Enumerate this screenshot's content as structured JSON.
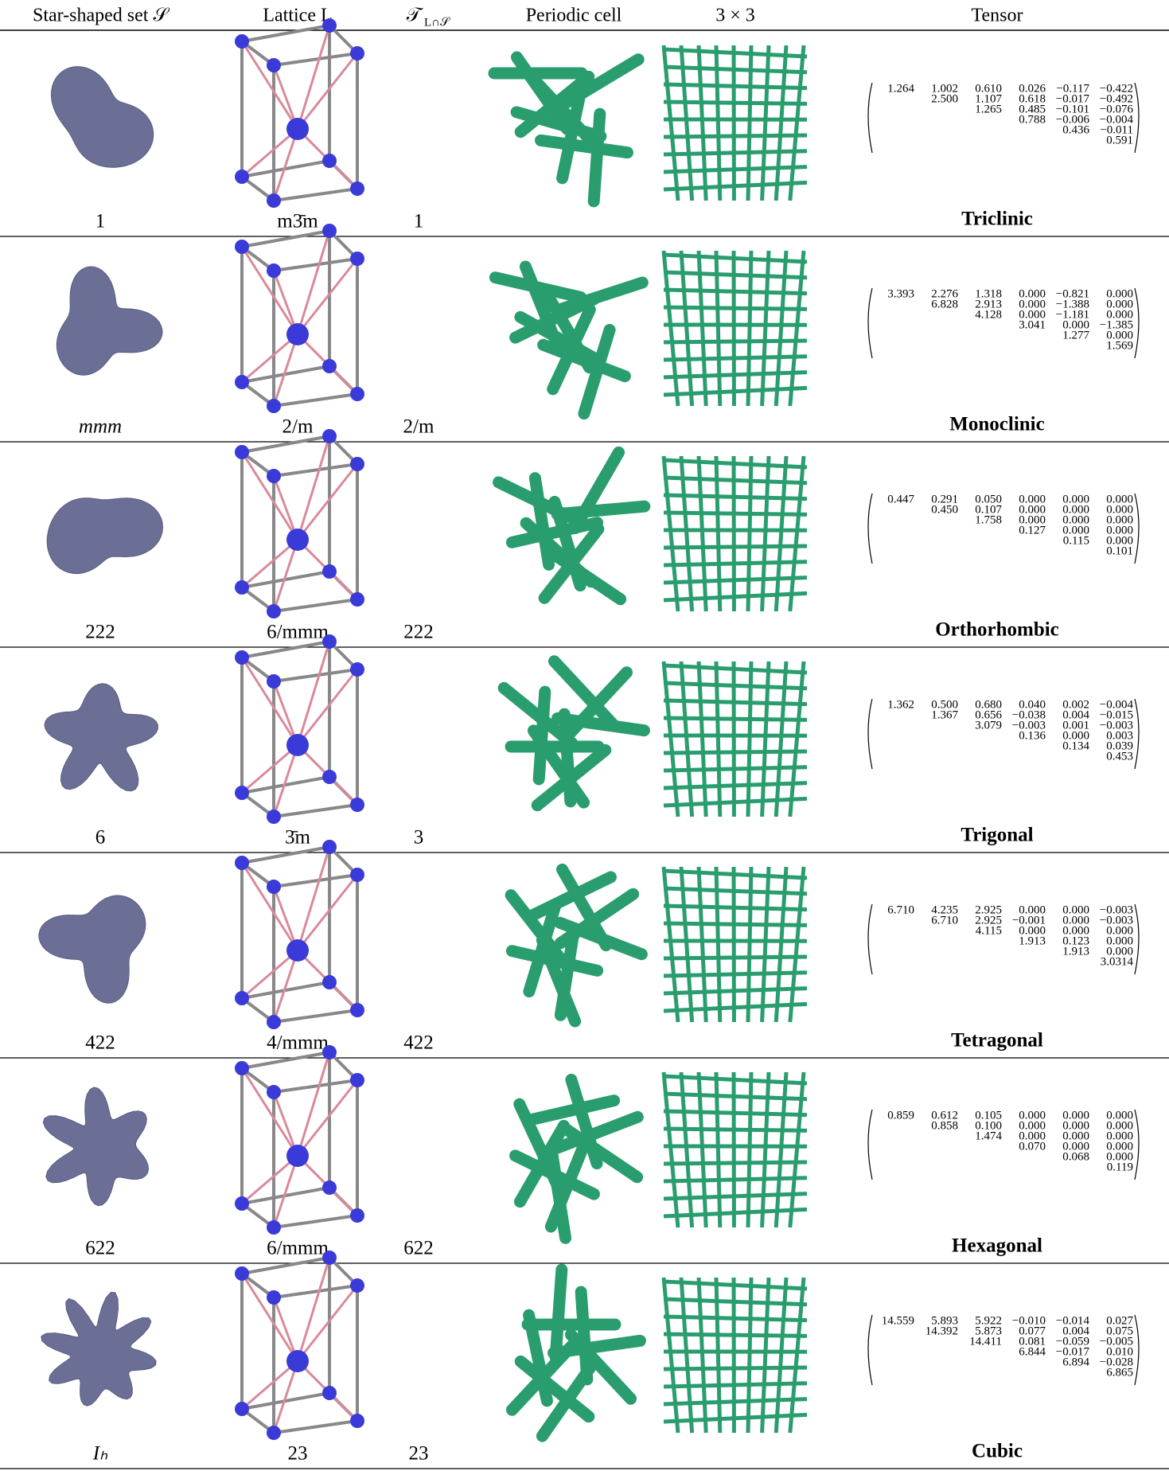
{
  "header": {
    "star_set": "Star-shaped set 𝒮",
    "lattice": "Lattice L",
    "t_symbol": "𝒯",
    "t_subscript": "L∩𝒮",
    "periodic_cell": "Periodic cell",
    "tiling": "3 × 3",
    "tensor": "Tensor"
  },
  "rows": [
    {
      "s": "1",
      "l": "m3̄m",
      "t": "1",
      "class": "Triclinic",
      "tensor": [
        [
          "1.264",
          "1.002",
          "0.610",
          "0.026",
          "−0.117",
          "−0.422"
        ],
        [
          "2.500",
          "1.107",
          "0.618",
          "−0.017",
          "−0.492"
        ],
        [
          "1.265",
          "0.485",
          "−0.101",
          "−0.076"
        ],
        [
          "0.788",
          "−0.006",
          "−0.004"
        ],
        [
          "0.436",
          "−0.011"
        ],
        [
          "0.591"
        ]
      ]
    },
    {
      "s": "mmm",
      "l": "2/m",
      "t": "2/m",
      "class": "Monoclinic",
      "tensor": [
        [
          "3.393",
          "2.276",
          "1.318",
          "0.000",
          "−0.821",
          "0.000"
        ],
        [
          "6.828",
          "2.913",
          "0.000",
          "−1.388",
          "0.000"
        ],
        [
          "4.128",
          "0.000",
          "−1.181",
          "0.000"
        ],
        [
          "3.041",
          "0.000",
          "−1.385"
        ],
        [
          "1.277",
          "0.000"
        ],
        [
          "1.569"
        ]
      ]
    },
    {
      "s": "222",
      "l": "6/mmm",
      "t": "222",
      "class": "Orthorhombic",
      "tensor": [
        [
          "0.447",
          "0.291",
          "0.050",
          "0.000",
          "0.000",
          "0.000"
        ],
        [
          "0.450",
          "0.107",
          "0.000",
          "0.000",
          "0.000"
        ],
        [
          "1.758",
          "0.000",
          "0.000",
          "0.000"
        ],
        [
          "0.127",
          "0.000",
          "0.000"
        ],
        [
          "0.115",
          "0.000"
        ],
        [
          "0.101"
        ]
      ]
    },
    {
      "s": "6",
      "l": "3̄m",
      "t": "3",
      "class": "Trigonal",
      "tensor": [
        [
          "1.362",
          "0.500",
          "0.680",
          "0.040",
          "0.002",
          "−0.004"
        ],
        [
          "1.367",
          "0.656",
          "−0.038",
          "0.004",
          "−0.015"
        ],
        [
          "3.079",
          "−0.003",
          "0.001",
          "−0.003"
        ],
        [
          "0.136",
          "0.000",
          "0.003"
        ],
        [
          "0.134",
          "0.039"
        ],
        [
          "0.453"
        ]
      ]
    },
    {
      "s": "422",
      "l": "4/mmm",
      "t": "422",
      "class": "Tetragonal",
      "tensor": [
        [
          "6.710",
          "4.235",
          "2.925",
          "0.000",
          "0.000",
          "−0.003"
        ],
        [
          "6.710",
          "2.925",
          "−0.001",
          "0.000",
          "−0.003"
        ],
        [
          "4.115",
          "0.000",
          "0.000",
          "0.000"
        ],
        [
          "1.913",
          "0.123",
          "0.000"
        ],
        [
          "1.913",
          "0.000"
        ],
        [
          "3.0314"
        ]
      ]
    },
    {
      "s": "622",
      "l": "6/mmm",
      "t": "622",
      "class": "Hexagonal",
      "tensor": [
        [
          "0.859",
          "0.612",
          "0.105",
          "0.000",
          "0.000",
          "0.000"
        ],
        [
          "0.858",
          "0.100",
          "0.000",
          "0.000",
          "0.000"
        ],
        [
          "1.474",
          "0.000",
          "0.000",
          "0.000"
        ],
        [
          "0.070",
          "0.000",
          "0.000"
        ],
        [
          "0.068",
          "0.000"
        ],
        [
          "0.119"
        ]
      ]
    },
    {
      "s": "Iₕ",
      "l": "23",
      "t": "23",
      "class": "Cubic",
      "tensor": [
        [
          "14.559",
          "5.893",
          "5.922",
          "−0.010",
          "−0.014",
          "0.027"
        ],
        [
          "14.392",
          "5.873",
          "0.077",
          "0.004",
          "0.075"
        ],
        [
          "14.411",
          "0.081",
          "−0.059",
          "−0.005"
        ],
        [
          "6.844",
          "−0.017",
          "0.010"
        ],
        [
          "6.894",
          "−0.028"
        ],
        [
          "6.865"
        ]
      ]
    }
  ]
}
